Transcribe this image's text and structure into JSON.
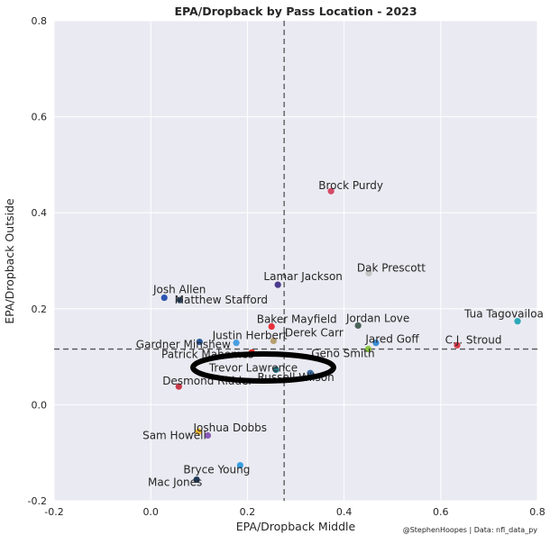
{
  "chart_data": {
    "type": "scatter",
    "title": "EPA/Dropback by Pass Location - 2023",
    "xlabel": "EPA/Dropback Middle",
    "ylabel": "EPA/Dropback Outside",
    "xlim": [
      -0.2,
      0.8
    ],
    "ylim": [
      -0.2,
      0.8
    ],
    "xticks": [
      "-0.2",
      "0.0",
      "0.2",
      "0.4",
      "0.6",
      "0.8"
    ],
    "yticks": [
      "-0.2",
      "0.0",
      "0.2",
      "0.4",
      "0.6",
      "0.8"
    ],
    "xtick_values": [
      -0.2,
      0,
      0.2,
      0.4,
      0.6,
      0.8
    ],
    "ytick_values": [
      -0.2,
      0,
      0.2,
      0.4,
      0.6,
      0.8
    ],
    "grid": true,
    "mean_lines": {
      "x": 0.276,
      "y": 0.116
    },
    "credit": "@StephenHoopes | Data: nfl_data_py",
    "highlight": "Trevor Lawrence",
    "points": [
      {
        "name": "Brock Purdy",
        "x": 0.373,
        "y": 0.445,
        "color": "#d44a66"
      },
      {
        "name": "Dak Prescott",
        "x": 0.451,
        "y": 0.274,
        "color": "#c4c4c4"
      },
      {
        "name": "Lamar Jackson",
        "x": 0.263,
        "y": 0.25,
        "color": "#4b3a8c"
      },
      {
        "name": "Josh Allen",
        "x": 0.028,
        "y": 0.223,
        "color": "#2d55b0"
      },
      {
        "name": "Matthew Stafford",
        "x": 0.06,
        "y": 0.218,
        "color": "#2e4a66"
      },
      {
        "name": "Baker Mayfield",
        "x": 0.25,
        "y": 0.163,
        "color": "#e8303a"
      },
      {
        "name": "Jordan Love",
        "x": 0.429,
        "y": 0.165,
        "color": "#4a6358"
      },
      {
        "name": "Tua Tagovailoa",
        "x": 0.759,
        "y": 0.174,
        "color": "#2aa8b8"
      },
      {
        "name": "Derek Carr",
        "x": 0.254,
        "y": 0.133,
        "color": "#b8a070"
      },
      {
        "name": "Gardner Minshew",
        "x": 0.101,
        "y": 0.131,
        "color": "#2a5a9a"
      },
      {
        "name": "Justin Herbert",
        "x": 0.177,
        "y": 0.129,
        "color": "#4a9ee0"
      },
      {
        "name": "Jared Goff",
        "x": 0.466,
        "y": 0.129,
        "color": "#3a8ed8"
      },
      {
        "name": "C.J. Stroud",
        "x": 0.634,
        "y": 0.124,
        "color": "#d83a4a"
      },
      {
        "name": "Geno Smith",
        "x": 0.45,
        "y": 0.116,
        "color": "#8ac840"
      },
      {
        "name": "Patrick Mahomes",
        "x": 0.209,
        "y": 0.109,
        "color": "#e02a2a"
      },
      {
        "name": "Trevor Lawrence",
        "x": 0.259,
        "y": 0.073,
        "color": "#2a7a8a"
      },
      {
        "name": "Russell Wilson",
        "x": 0.33,
        "y": 0.066,
        "color": "#3a6aa0"
      },
      {
        "name": "Desmond Ridder",
        "x": 0.058,
        "y": 0.038,
        "color": "#c83a4a"
      },
      {
        "name": "Joshua Dobbs",
        "x": 0.099,
        "y": -0.056,
        "color": "#f0b830"
      },
      {
        "name": "Sam Howell",
        "x": 0.118,
        "y": -0.064,
        "color": "#8a5ab8"
      },
      {
        "name": "Bryce Young",
        "x": 0.185,
        "y": -0.126,
        "color": "#3aa0e0"
      },
      {
        "name": "Mac Jones",
        "x": 0.095,
        "y": -0.156,
        "color": "#1e3a5a"
      }
    ]
  }
}
